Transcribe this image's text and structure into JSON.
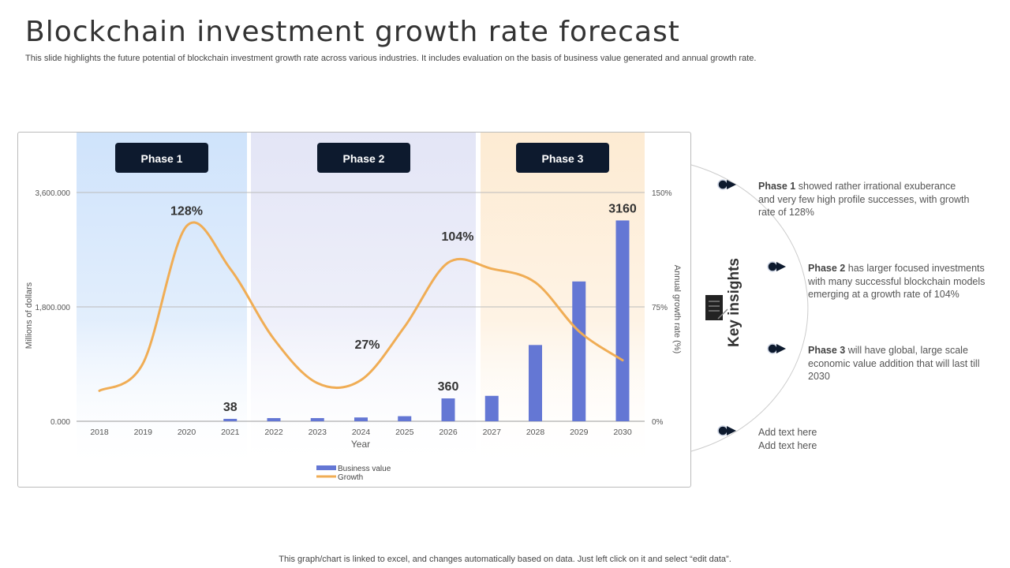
{
  "title": "Blockchain investment growth rate forecast",
  "subtitle": "This slide highlights the future potential of blockchain investment growth rate across various industries. It includes evaluation on the basis of business value generated and annual growth rate.",
  "footer": "This graph/chart is linked to excel, and changes automatically based on data. Just left click on it and select “edit data”.",
  "phases": [
    "Phase 1",
    "Phase 2",
    "Phase 3"
  ],
  "colors": {
    "bars": "#6477d4",
    "line": "#f0ad55",
    "phase1": "#cfe3fb",
    "phase2": "#e3e5f6",
    "phase3": "#fdebd3",
    "badge": "#0d1a2e"
  },
  "chart_data": {
    "type": "bar+line",
    "categories": [
      "2018",
      "2019",
      "2020",
      "2021",
      "2022",
      "2023",
      "2024",
      "2025",
      "2026",
      "2027",
      "2028",
      "2029",
      "2030"
    ],
    "xlabel": "Year",
    "ylabel": "Millions of dollars",
    "y2label": "Annual growth rate (%)",
    "yticks": [
      "0.000",
      "1,800.000",
      "3,600.000"
    ],
    "ylim": [
      0,
      3600
    ],
    "y2ticks": [
      "0%",
      "75%",
      "150%"
    ],
    "y2lim": [
      0,
      150
    ],
    "grid": true,
    "legend": "bottom",
    "series": [
      {
        "name": "Business value",
        "type": "bar",
        "axis": "left",
        "values": [
          0,
          0,
          0,
          38,
          50,
          50,
          60,
          80,
          360,
          400,
          1200,
          2200,
          3160
        ]
      },
      {
        "name": "Growth",
        "type": "line",
        "axis": "right",
        "smooth": true,
        "values": [
          20,
          38,
          128,
          100,
          54,
          25,
          27,
          62,
          104,
          100,
          91,
          59,
          40
        ]
      }
    ],
    "data_labels": [
      {
        "category": "2021",
        "series": "Business value",
        "text": "38"
      },
      {
        "category": "2026",
        "series": "Business value",
        "text": "360"
      },
      {
        "category": "2030",
        "series": "Business value",
        "text": "3160"
      },
      {
        "category": "2020",
        "series": "Growth",
        "text": "128%"
      },
      {
        "category": "2024",
        "series": "Growth",
        "text": "27%"
      },
      {
        "category": "2026",
        "series": "Growth",
        "text": "104%"
      }
    ]
  },
  "insights": {
    "heading": "Key insights",
    "icon": "document-pen-icon",
    "items": [
      {
        "bold": "Phase 1",
        "text": " showed rather irrational exuberance and very few high profile successes, with growth rate of 128%"
      },
      {
        "bold": "Phase 2",
        "text": " has larger focused investments with many successful blockchain models emerging at a growth rate of 104%"
      },
      {
        "bold": "Phase 3",
        "text": " will have global, large scale economic value  addition that will last till 2030"
      },
      {
        "bold": "",
        "text": "Add text here\nAdd text here"
      }
    ]
  }
}
